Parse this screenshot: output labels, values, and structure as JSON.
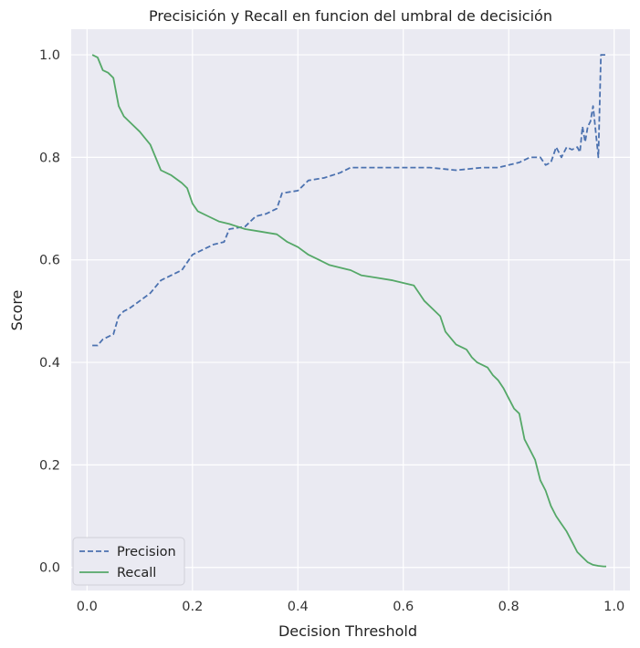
{
  "chart_data": {
    "type": "line",
    "title": "Precisición y Recall en funcion del umbral de decisición",
    "xlabel": "Decision Threshold",
    "ylabel": "Score",
    "xlim": [
      -0.03,
      1.03
    ],
    "ylim": [
      -0.045,
      1.05
    ],
    "xticks": [
      0.0,
      0.2,
      0.4,
      0.6,
      0.8,
      1.0
    ],
    "xtick_labels": [
      "0.0",
      "0.2",
      "0.4",
      "0.6",
      "0.8",
      "1.0"
    ],
    "yticks": [
      0.0,
      0.2,
      0.4,
      0.6,
      0.8,
      1.0
    ],
    "ytick_labels": [
      "0.0",
      "0.2",
      "0.4",
      "0.6",
      "0.8",
      "1.0"
    ],
    "grid": true,
    "legend_position": "lower-left",
    "background_color": "#EAEAF2",
    "grid_color": "#FFFFFF",
    "series": [
      {
        "name": "Precision",
        "color": "#4C72B0",
        "style": "dashed",
        "x": [
          0.01,
          0.02,
          0.03,
          0.05,
          0.06,
          0.07,
          0.08,
          0.1,
          0.12,
          0.14,
          0.16,
          0.18,
          0.2,
          0.22,
          0.24,
          0.26,
          0.27,
          0.3,
          0.32,
          0.34,
          0.36,
          0.37,
          0.4,
          0.42,
          0.45,
          0.48,
          0.5,
          0.55,
          0.6,
          0.65,
          0.7,
          0.75,
          0.78,
          0.8,
          0.82,
          0.84,
          0.86,
          0.87,
          0.88,
          0.89,
          0.9,
          0.91,
          0.92,
          0.93,
          0.935,
          0.94,
          0.945,
          0.95,
          0.955,
          0.96,
          0.965,
          0.97,
          0.975,
          0.98,
          0.985
        ],
        "y": [
          0.433,
          0.433,
          0.445,
          0.455,
          0.49,
          0.5,
          0.505,
          0.52,
          0.535,
          0.56,
          0.57,
          0.58,
          0.61,
          0.62,
          0.63,
          0.635,
          0.66,
          0.665,
          0.685,
          0.69,
          0.7,
          0.73,
          0.735,
          0.755,
          0.76,
          0.77,
          0.78,
          0.78,
          0.78,
          0.78,
          0.775,
          0.78,
          0.78,
          0.785,
          0.79,
          0.8,
          0.8,
          0.785,
          0.79,
          0.82,
          0.8,
          0.82,
          0.815,
          0.82,
          0.81,
          0.86,
          0.83,
          0.86,
          0.87,
          0.9,
          0.85,
          0.8,
          1.0,
          1.0,
          1.0
        ]
      },
      {
        "name": "Recall",
        "color": "#55A868",
        "style": "solid",
        "x": [
          0.01,
          0.02,
          0.03,
          0.04,
          0.05,
          0.06,
          0.07,
          0.08,
          0.1,
          0.12,
          0.13,
          0.14,
          0.16,
          0.18,
          0.19,
          0.2,
          0.21,
          0.23,
          0.25,
          0.27,
          0.3,
          0.33,
          0.36,
          0.38,
          0.4,
          0.42,
          0.44,
          0.46,
          0.48,
          0.5,
          0.52,
          0.55,
          0.58,
          0.6,
          0.62,
          0.63,
          0.64,
          0.66,
          0.67,
          0.68,
          0.7,
          0.72,
          0.73,
          0.74,
          0.76,
          0.77,
          0.78,
          0.79,
          0.8,
          0.81,
          0.82,
          0.83,
          0.84,
          0.85,
          0.86,
          0.87,
          0.88,
          0.89,
          0.9,
          0.91,
          0.92,
          0.93,
          0.94,
          0.95,
          0.96,
          0.97,
          0.98,
          0.985
        ],
        "y": [
          1.0,
          0.995,
          0.97,
          0.965,
          0.955,
          0.9,
          0.88,
          0.87,
          0.85,
          0.825,
          0.8,
          0.775,
          0.765,
          0.75,
          0.74,
          0.71,
          0.695,
          0.685,
          0.675,
          0.67,
          0.66,
          0.655,
          0.65,
          0.635,
          0.625,
          0.61,
          0.6,
          0.59,
          0.585,
          0.58,
          0.57,
          0.565,
          0.56,
          0.555,
          0.55,
          0.535,
          0.52,
          0.5,
          0.49,
          0.46,
          0.435,
          0.425,
          0.41,
          0.4,
          0.39,
          0.375,
          0.365,
          0.35,
          0.33,
          0.31,
          0.3,
          0.25,
          0.23,
          0.21,
          0.17,
          0.15,
          0.12,
          0.1,
          0.085,
          0.07,
          0.05,
          0.03,
          0.02,
          0.01,
          0.005,
          0.003,
          0.002,
          0.002
        ]
      }
    ]
  }
}
